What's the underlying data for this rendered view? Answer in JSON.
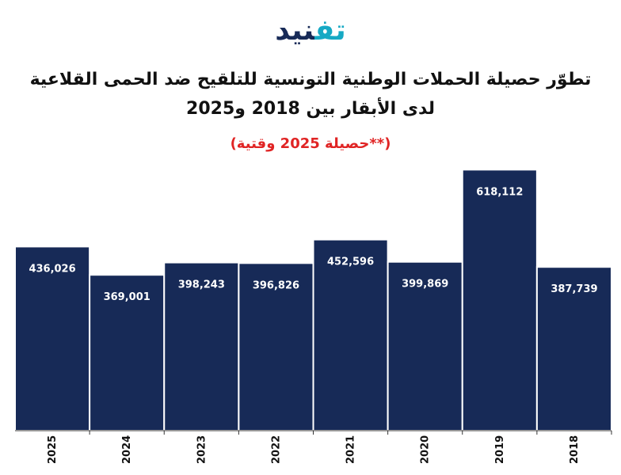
{
  "logo": {
    "part1": "تف",
    "part2": "نيد",
    "brand_color": "#16a9c4",
    "text_color": "#172a57"
  },
  "title": "تطوّر حصيلة الحملات الوطنية التونسية للتلقيح ضد الحمى القلاعية لدى الأبقار بين 2018 و2025",
  "subtitle": "(**حصيلة 2025 وقتية)",
  "subtitle_color": "#e02424",
  "chart_data": {
    "type": "bar",
    "title": "تطوّر حصيلة الحملات الوطنية التونسية للتلقيح ضد الحمى القلاعية لدى الأبقار بين 2018 و2025",
    "subtitle": "(**حصيلة 2025 وقتية)",
    "categories": [
      "2025",
      "2024",
      "2023",
      "2022",
      "2021",
      "2020",
      "2019",
      "2018"
    ],
    "values": [
      436026,
      369001,
      398243,
      396826,
      452596,
      399869,
      618112,
      387739
    ],
    "data_labels": [
      "436,026",
      "369,001",
      "398,243",
      "396,826",
      "452,596",
      "399,869",
      "618,112",
      "387,739"
    ],
    "ylim": [
      0,
      750000
    ],
    "xlabel": "",
    "ylabel": "",
    "grid": false,
    "legend": "none",
    "bar_color": "#172a57",
    "bar_stroke": "#ffffff",
    "label_color": "#ffffff"
  }
}
